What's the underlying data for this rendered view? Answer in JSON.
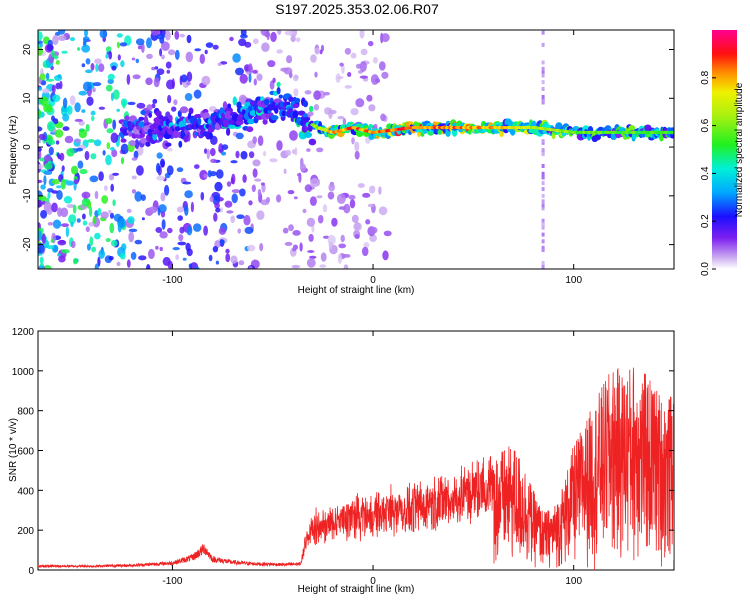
{
  "title": "S197.2025.353.02.06.R07",
  "chart_data": [
    {
      "type": "heatmap",
      "xlabel": "Height of straight line (km)",
      "ylabel": "Frequency (Hz)",
      "xlim": [
        -167,
        150
      ],
      "ylim": [
        -25,
        24
      ],
      "xticks": [
        -100,
        0,
        100
      ],
      "yticks": [
        -20,
        -10,
        0,
        10,
        20
      ],
      "colorbar": {
        "label": "Normalized spectral amplitude",
        "range": [
          0,
          1
        ],
        "ticks": [
          "0.0",
          "0.2",
          "0.4",
          "0.6",
          "0.8"
        ],
        "tick_values": [
          0.0,
          0.2,
          0.4,
          0.6,
          0.8
        ]
      },
      "ridge": {
        "description_points_x": [
          -120,
          -100,
          -80,
          -60,
          -45,
          -35,
          -28,
          -20,
          -10,
          0,
          20,
          40,
          60,
          80,
          100,
          120,
          150
        ],
        "frequency_hz": [
          4,
          4,
          5,
          7,
          9,
          6,
          4,
          3,
          4,
          3,
          4,
          4,
          4,
          4,
          3,
          3,
          3
        ],
        "peak_amplitude": [
          0.3,
          0.4,
          0.45,
          0.5,
          0.5,
          0.55,
          0.7,
          0.85,
          0.95,
          0.9,
          0.95,
          0.92,
          0.85,
          0.75,
          0.65,
          0.6,
          0.6
        ]
      }
    },
    {
      "type": "line",
      "xlabel": "Height of straight line (km)",
      "ylabel": "SNR (10 * v/v)",
      "xlim": [
        -167,
        150
      ],
      "ylim": [
        0,
        1200
      ],
      "xticks": [
        -100,
        0,
        100
      ],
      "yticks": [
        0,
        200,
        400,
        600,
        800,
        1000,
        1200
      ],
      "color": "#ee2222",
      "envelope": {
        "x": [
          -167,
          -140,
          -120,
          -100,
          -90,
          -84,
          -80,
          -70,
          -60,
          -45,
          -36,
          -34,
          -30,
          -20,
          -15,
          -10,
          0,
          10,
          20,
          30,
          40,
          45,
          50,
          55,
          60,
          65,
          70,
          75,
          80,
          85,
          90,
          95,
          100,
          105,
          110,
          115,
          120,
          125,
          130,
          135,
          140,
          145,
          150
        ],
        "y": [
          25,
          25,
          30,
          45,
          80,
          140,
          70,
          50,
          40,
          35,
          40,
          180,
          260,
          300,
          320,
          340,
          360,
          380,
          400,
          430,
          460,
          480,
          500,
          530,
          560,
          580,
          600,
          520,
          380,
          280,
          300,
          420,
          600,
          700,
          800,
          900,
          980,
          950,
          1000,
          950,
          900,
          820,
          850
        ]
      }
    }
  ]
}
